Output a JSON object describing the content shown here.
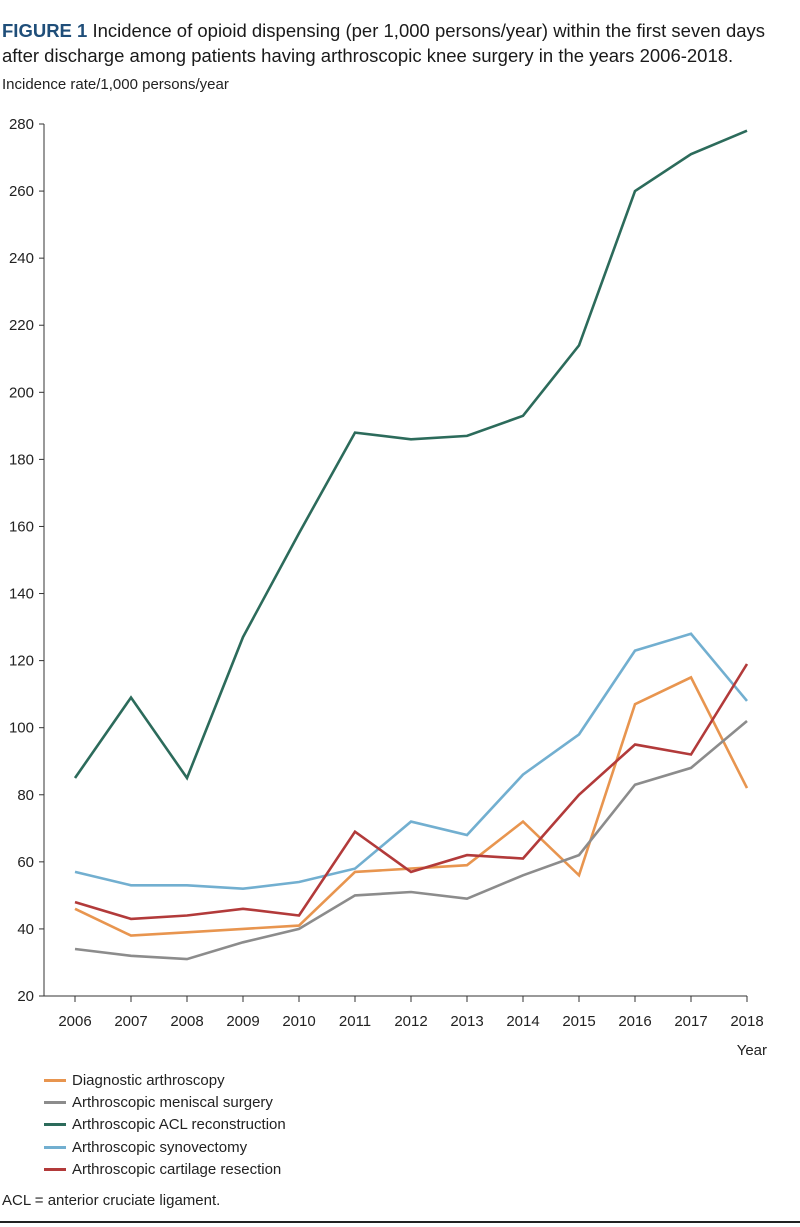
{
  "title": {
    "label": "FIGURE 1",
    "text": " Incidence of opioid dispensing (per 1,000 persons/year) within the first seven days after discharge among patients having arthroscopic knee surgery in the years 2006-2018."
  },
  "footnote": "ACL = anterior cruciate ligament.",
  "chart_data": {
    "type": "line",
    "ylabel": "Incidence rate/1,000 persons/year",
    "xlabel": "Year",
    "ylim": [
      20,
      280
    ],
    "yticks": [
      20,
      40,
      60,
      80,
      100,
      120,
      140,
      160,
      180,
      200,
      220,
      240,
      260,
      280
    ],
    "x": [
      "2006",
      "2007",
      "2008",
      "2009",
      "2010",
      "2011",
      "2012",
      "2013",
      "2014",
      "2015",
      "2016",
      "2017",
      "2018"
    ],
    "grid": false,
    "legend_position": "bottom-left",
    "series": [
      {
        "name": "Diagnostic arthroscopy",
        "color": "#e8954f",
        "values": [
          46,
          38,
          39,
          40,
          41,
          57,
          58,
          59,
          72,
          56,
          107,
          115,
          82
        ]
      },
      {
        "name": "Arthroscopic meniscal surgery",
        "color": "#8c8c8c",
        "values": [
          34,
          32,
          31,
          36,
          40,
          50,
          51,
          49,
          56,
          62,
          83,
          88,
          102
        ]
      },
      {
        "name": "Arthroscopic ACL reconstruction",
        "color": "#2c6b5b",
        "values": [
          85,
          109,
          85,
          127,
          158,
          188,
          186,
          187,
          193,
          214,
          260,
          271,
          278
        ]
      },
      {
        "name": "Arthroscopic synovectomy",
        "color": "#72afd0",
        "values": [
          57,
          53,
          53,
          52,
          54,
          58,
          72,
          68,
          86,
          98,
          123,
          128,
          108
        ]
      },
      {
        "name": "Arthroscopic cartilage resection",
        "color": "#b23a3a",
        "values": [
          48,
          43,
          44,
          46,
          44,
          69,
          57,
          62,
          61,
          80,
          95,
          92,
          119
        ]
      }
    ]
  }
}
